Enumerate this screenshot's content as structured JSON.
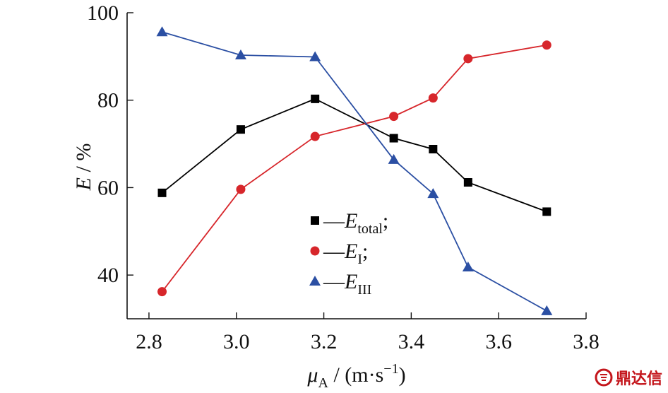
{
  "chart_data": {
    "type": "line",
    "xlabel": "μA / (m·s−1)",
    "xlabel_parts": {
      "sym": "μ",
      "sub": "A",
      "unit_pre": " / (m",
      "dot": "·",
      "unit_s": "s",
      "sup": "−1",
      "unit_post": ")"
    },
    "ylabel": "E / %",
    "ylabel_parts": {
      "sym": "E",
      "rest": " / %"
    },
    "xlim": [
      2.75,
      3.8
    ],
    "ylim": [
      30,
      100
    ],
    "x_ticks": [
      "2.8",
      "3.0",
      "3.2",
      "3.4",
      "3.6",
      "3.8"
    ],
    "y_ticks": [
      "40",
      "60",
      "80",
      "100"
    ],
    "grid": false,
    "legend_position": "center",
    "series": [
      {
        "name": "—Etotal;",
        "legend": {
          "dash": "—",
          "sym": "E",
          "sub": "total",
          "suffix": ";"
        },
        "marker": "square",
        "color": "#000000",
        "x": [
          2.83,
          3.01,
          3.18,
          3.36,
          3.45,
          3.53,
          3.71
        ],
        "y": [
          58.8,
          73.3,
          80.3,
          71.3,
          68.8,
          61.2,
          54.5
        ]
      },
      {
        "name": "—EI;",
        "legend": {
          "dash": "—",
          "sym": "E",
          "sub": "I",
          "suffix": ";"
        },
        "marker": "circle",
        "color": "#d7262b",
        "x": [
          2.83,
          3.01,
          3.18,
          3.36,
          3.45,
          3.53,
          3.71
        ],
        "y": [
          36.2,
          59.6,
          71.7,
          76.3,
          80.5,
          89.5,
          92.6
        ]
      },
      {
        "name": "—EIII",
        "legend": {
          "dash": "—",
          "sym": "E",
          "sub": "III",
          "suffix": ""
        },
        "marker": "triangle",
        "color": "#2b4fa3",
        "x": [
          2.83,
          3.01,
          3.18,
          3.36,
          3.45,
          3.53,
          3.71
        ],
        "y": [
          95.6,
          90.3,
          89.9,
          66.4,
          58.6,
          41.8,
          31.8
        ]
      }
    ]
  },
  "watermark": {
    "text": "鼎达信",
    "icon": "logo-seal-icon",
    "color": "#c4161c"
  }
}
